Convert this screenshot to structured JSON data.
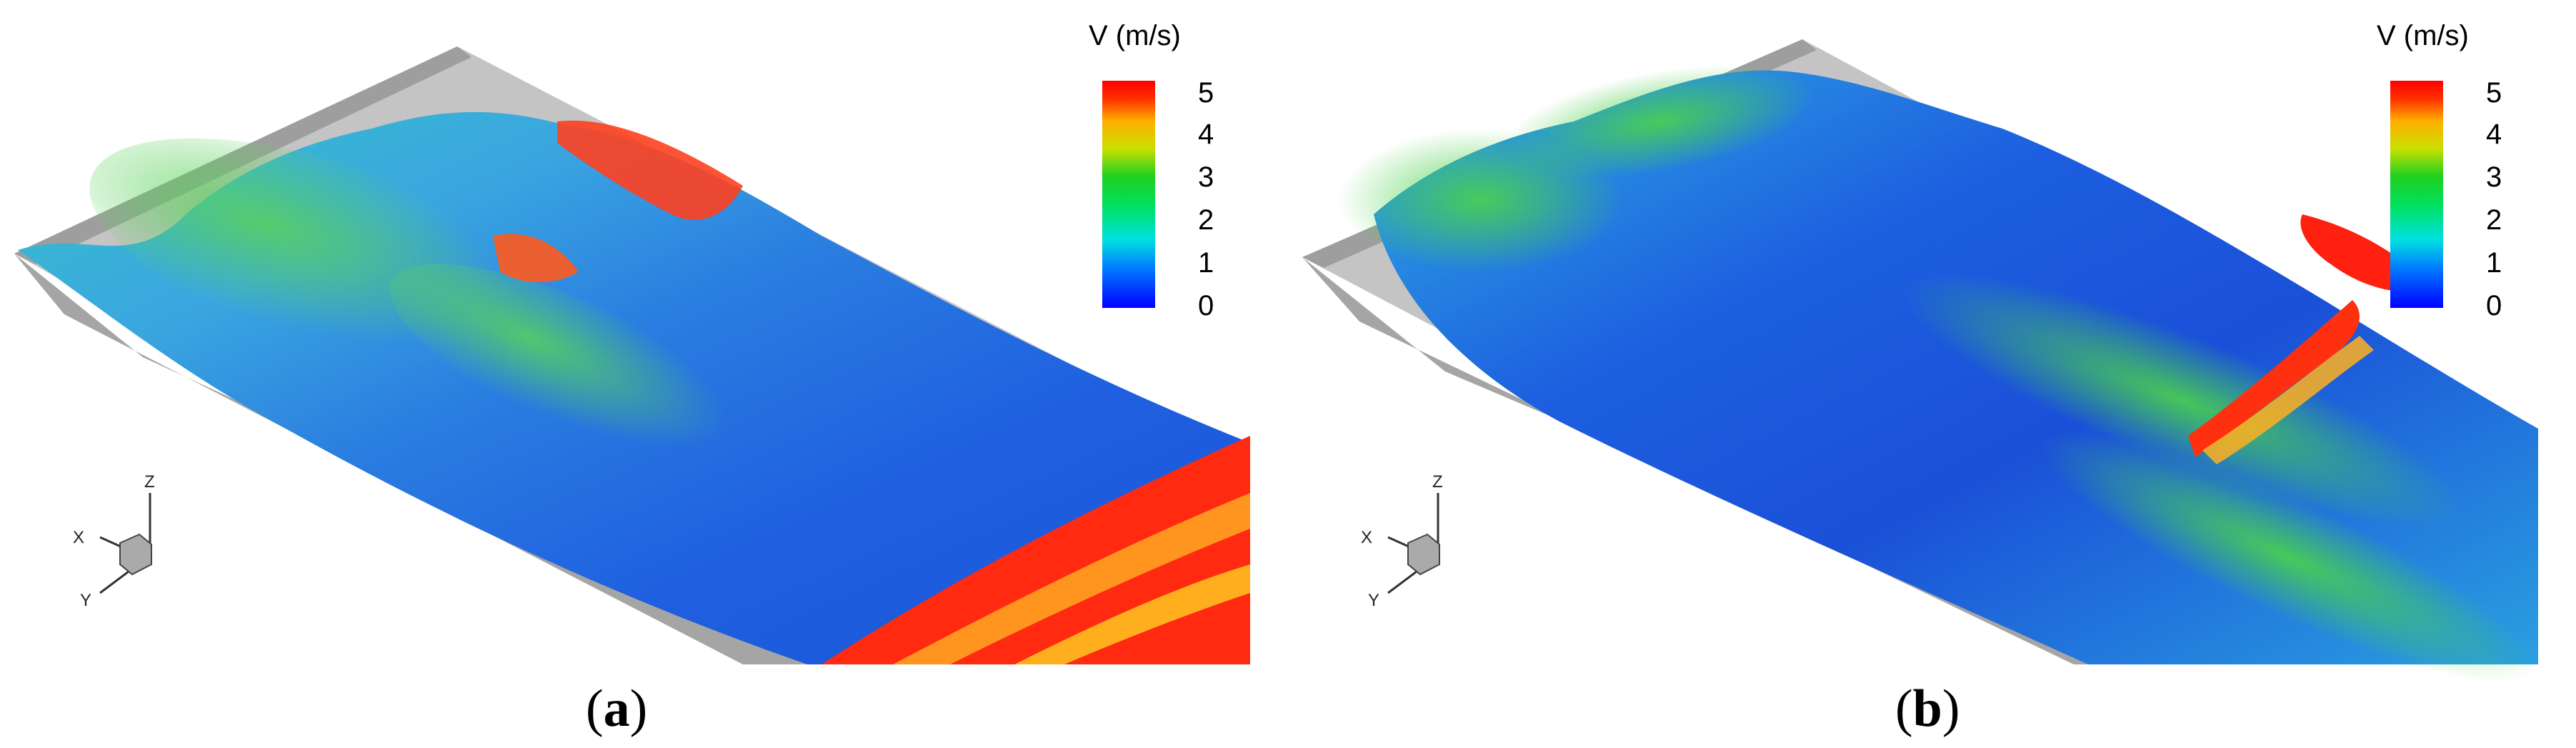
{
  "panels": [
    {
      "label": "a",
      "legend": {
        "title": "V (m/s)",
        "ticks": [
          "5",
          "4",
          "3",
          "2",
          "1",
          "0"
        ]
      },
      "axes": {
        "x": "X",
        "y": "Y",
        "z": "Z"
      }
    },
    {
      "label": "b",
      "legend": {
        "title": "V (m/s)",
        "ticks": [
          "5",
          "4",
          "3",
          "2",
          "1",
          "0"
        ]
      },
      "axes": {
        "x": "X",
        "y": "Y",
        "z": "Z"
      }
    }
  ],
  "colors": {
    "channel_wall": "#bdbdbd",
    "channel_floor": "#a8a8a8",
    "low": "#0033cc",
    "mid": "#22cc44",
    "high": "#ee1111"
  }
}
